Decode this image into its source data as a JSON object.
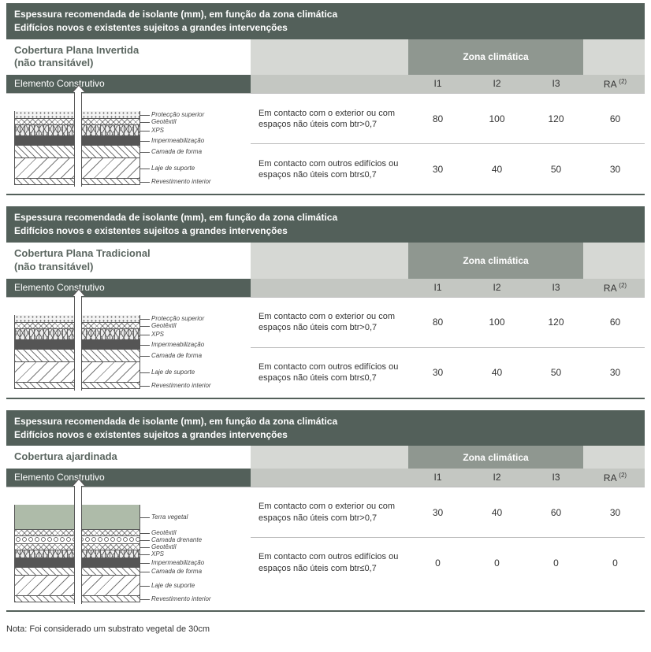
{
  "common": {
    "header_line1": "Espessura recomendada de isolante (mm), em função da zona climática",
    "header_line2": "Edifícios novos e existentes sujeitos a grandes intervenções",
    "zone_label": "Zona climática",
    "element_label": "Elemento Construtivo",
    "col_i1": "I1",
    "col_i2": "I2",
    "col_i3": "I3",
    "col_ra": "RA",
    "col_ra_sup": "(2)",
    "colors": {
      "header_bg": "#53605a",
      "sub_bg": "#d6d8d4",
      "zone_bg": "#8f9790",
      "colhead_bg": "#c4c7c2",
      "text_light": "#ffffff",
      "text_dark": "#333333"
    }
  },
  "panels": [
    {
      "subtitle_line1": "Cobertura Plana Invertida",
      "subtitle_line2": "(não transitável)",
      "diagram": "invertida",
      "layers": [
        {
          "label": "Protecção superior"
        },
        {
          "label": "Geotêxtil"
        },
        {
          "label": "XPS"
        },
        {
          "label": "Impermeabilização"
        },
        {
          "label": "Camada de forma"
        },
        {
          "label": "Laje de suporte"
        },
        {
          "label": "Revestimento interior"
        }
      ],
      "rows": [
        {
          "desc": "Em contacto com o exterior ou com espaços não úteis com btr>0,7",
          "i1": "80",
          "i2": "100",
          "i3": "120",
          "ra": "60"
        },
        {
          "desc": "Em contacto com outros edifícios ou espaços não úteis com btr≤0,7",
          "i1": "30",
          "i2": "40",
          "i3": "50",
          "ra": "30"
        }
      ]
    },
    {
      "subtitle_line1": "Cobertura Plana Tradicional",
      "subtitle_line2": "(não transitável)",
      "diagram": "tradicional",
      "layers": [
        {
          "label": "Protecção superior"
        },
        {
          "label": "Geotêxtil"
        },
        {
          "label": "XPS"
        },
        {
          "label": "Impermeabilização"
        },
        {
          "label": "Camada de forma"
        },
        {
          "label": "Laje de suporte"
        },
        {
          "label": "Revestimento interior"
        }
      ],
      "rows": [
        {
          "desc": "Em contacto com o exterior ou com espaços não úteis com btr>0,7",
          "i1": "80",
          "i2": "100",
          "i3": "120",
          "ra": "60"
        },
        {
          "desc": "Em contacto com outros edifícios ou espaços não úteis com btr≤0,7",
          "i1": "30",
          "i2": "40",
          "i3": "50",
          "ra": "30"
        }
      ]
    },
    {
      "subtitle_line1": "Cobertura ajardinada",
      "subtitle_line2": "",
      "diagram": "ajardinada",
      "layers": [
        {
          "label": "Terra vegetal"
        },
        {
          "label": "Geotêxtil"
        },
        {
          "label": "Camada drenante"
        },
        {
          "label": "Geotêxtil"
        },
        {
          "label": "XPS"
        },
        {
          "label": "Impermeabilização"
        },
        {
          "label": "Camada de forma"
        },
        {
          "label": "Laje de suporte"
        },
        {
          "label": "Revestimento interior"
        }
      ],
      "rows": [
        {
          "desc": "Em contacto com o exterior ou com espaços não úteis com btr>0,7",
          "i1": "30",
          "i2": "40",
          "i3": "60",
          "ra": "30"
        },
        {
          "desc": "Em contacto com outros edifícios ou espaços não úteis com btr≤0,7",
          "i1": "0",
          "i2": "0",
          "i3": "0",
          "ra": "0"
        }
      ],
      "note": "Nota: Foi considerado um substrato vegetal de 30cm"
    }
  ]
}
